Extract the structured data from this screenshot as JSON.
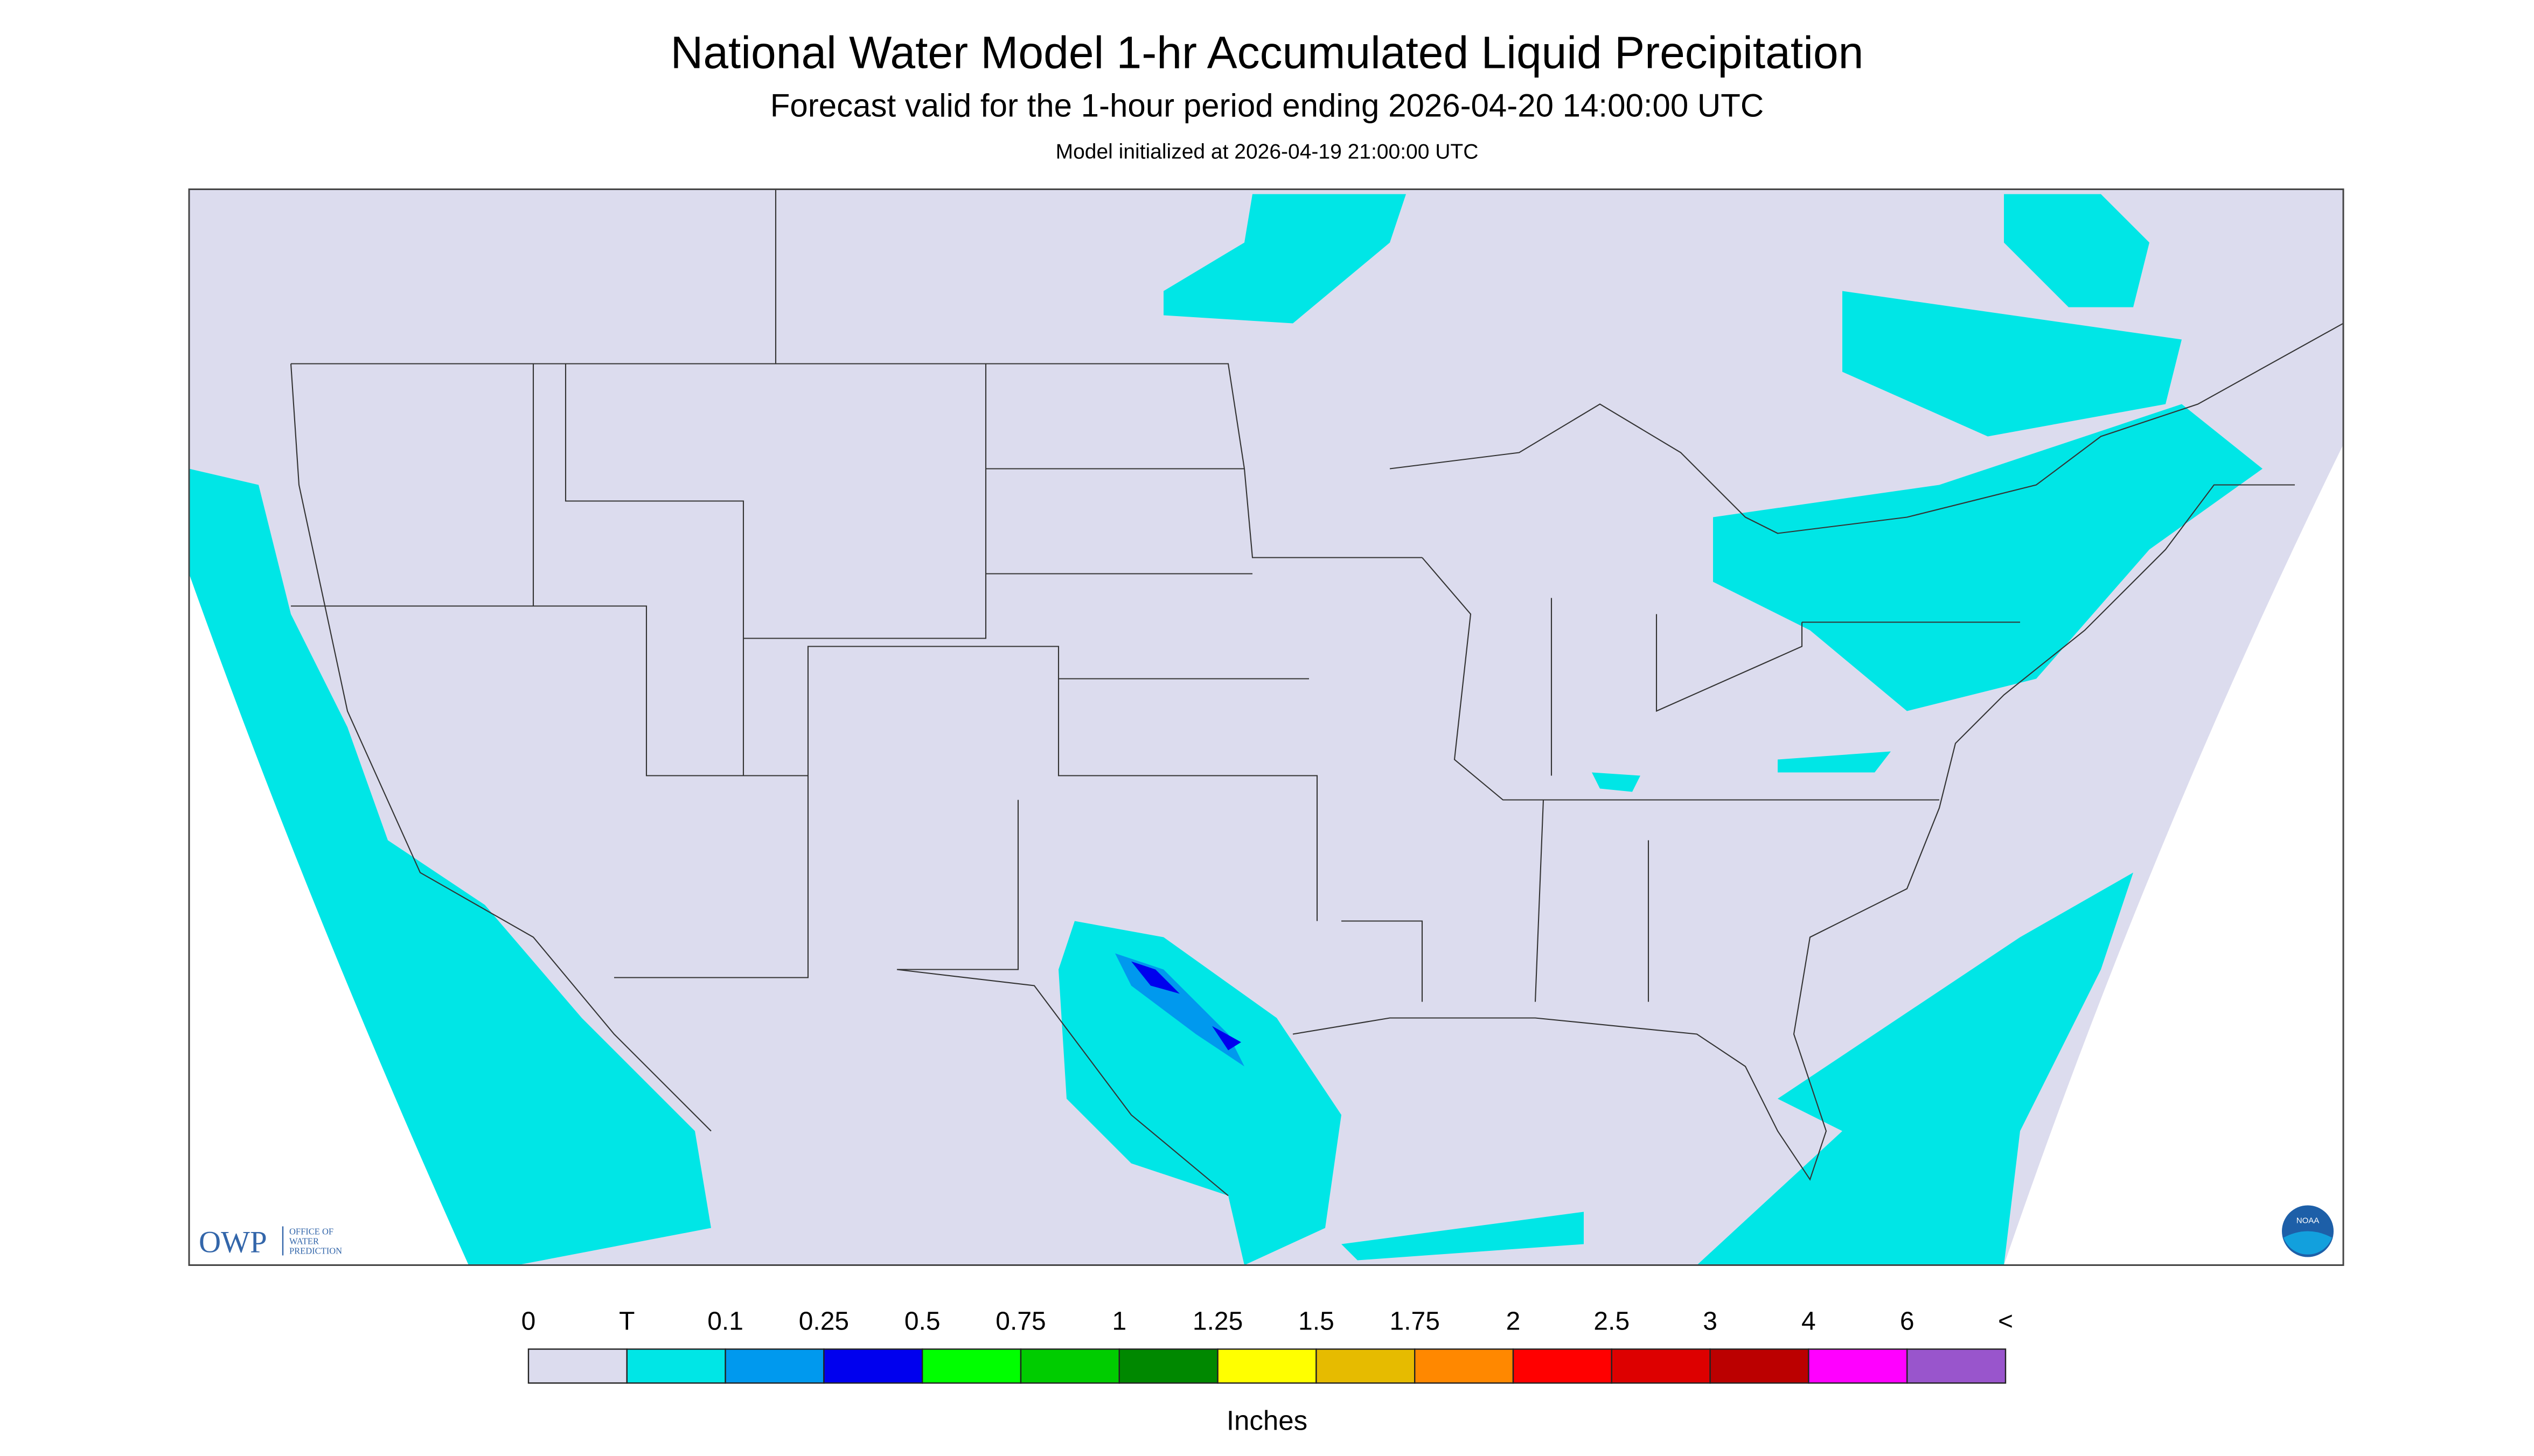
{
  "header": {
    "title": "National Water Model 1-hr Accumulated Liquid Precipitation",
    "subtitle": "Forecast valid for the 1-hour period ending 2026-04-20 14:00:00 UTC",
    "note": "Model initialized at 2026-04-19 21:00:00 UTC"
  },
  "legend": {
    "labels": [
      "0",
      "T",
      "0.1",
      "0.25",
      "0.5",
      "0.75",
      "1",
      "1.25",
      "1.5",
      "1.75",
      "2",
      "2.5",
      "3",
      "4",
      "6",
      "<"
    ],
    "colors": [
      "#dcdcee",
      "#00e6e6",
      "#0099ee",
      "#0000ee",
      "#00ff00",
      "#00cc00",
      "#008800",
      "#ffff00",
      "#e6bb00",
      "#ff8800",
      "#ff0000",
      "#dd0000",
      "#bb0000",
      "#ff00ff",
      "#9955cc"
    ],
    "unit": "Inches"
  },
  "logos": {
    "owp": "OWP",
    "owp_lines": [
      "OFFICE OF",
      "WATER",
      "PREDICTION"
    ],
    "noaa": "NOAA"
  }
}
